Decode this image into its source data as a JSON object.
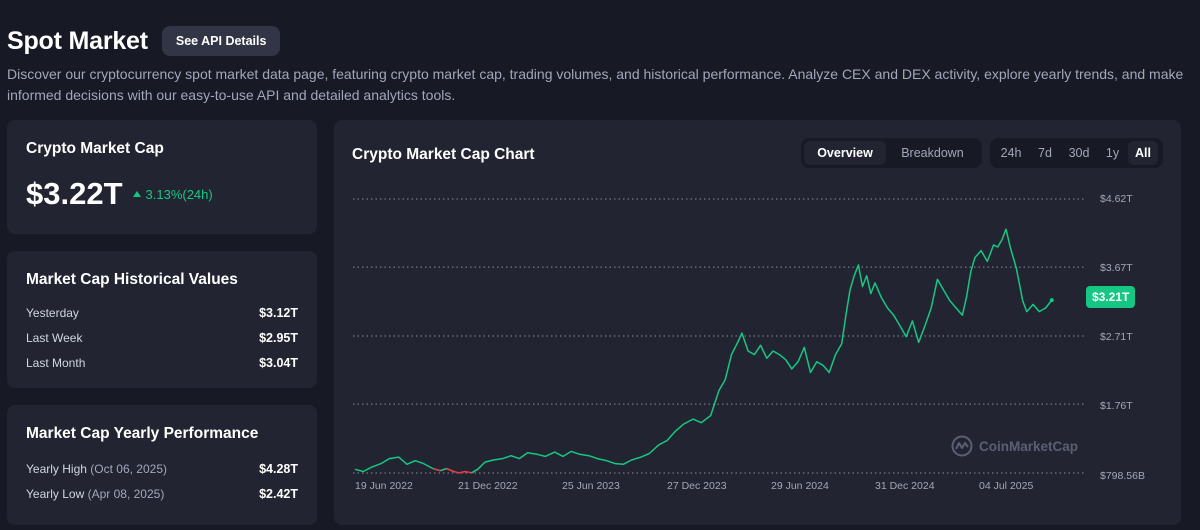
{
  "header": {
    "title": "Spot Market",
    "api_button": "See API Details"
  },
  "description": "Discover our cryptocurrency spot market data page, featuring crypto market cap, trading volumes, and historical performance. Analyze CEX and DEX activity, explore yearly trends, and make informed decisions with our easy-to-use API and detailed analytics tools.",
  "market_cap": {
    "title": "Crypto Market Cap",
    "value": "$3.22T",
    "change": "3.13%(24h)"
  },
  "historical": {
    "title": "Market Cap Historical Values",
    "rows": [
      {
        "label": "Yesterday",
        "value": "$3.12T"
      },
      {
        "label": "Last Week",
        "value": "$2.95T"
      },
      {
        "label": "Last Month",
        "value": "$3.04T"
      }
    ]
  },
  "yearly": {
    "title": "Market Cap Yearly Performance",
    "high": {
      "label": "Yearly High",
      "date": "(Oct 06, 2025)",
      "value": "$4.28T"
    },
    "low": {
      "label": "Yearly Low",
      "date": "(Apr 08, 2025)",
      "value": "$2.42T"
    }
  },
  "chart": {
    "title": "Crypto Market Cap Chart",
    "view_tabs": [
      "Overview",
      "Breakdown"
    ],
    "active_view": "Overview",
    "range_tabs": [
      "24h",
      "7d",
      "30d",
      "1y",
      "All"
    ],
    "active_range": "All",
    "current_price_label": "$3.21T",
    "watermark": "CoinMarketCap",
    "up_color": "#16c784",
    "down_color": "#ea3943"
  },
  "chart_data": {
    "type": "line",
    "title": "Crypto Market Cap Chart",
    "y_tick_labels": [
      "$4.62T",
      "$3.67T",
      "$2.71T",
      "$1.76T",
      "$798.56B"
    ],
    "y_tick_values": [
      4.62,
      3.67,
      2.71,
      1.76,
      0.79856
    ],
    "ylim": [
      0.79856,
      4.62
    ],
    "x_tick_labels": [
      "19 Jun 2022",
      "21 Dec 2022",
      "25 Jun 2023",
      "27 Dec 2023",
      "29 Jun 2024",
      "31 Dec 2024",
      "04 Jul 2025"
    ],
    "grid": true,
    "y_unit": "trillion USD",
    "series": [
      {
        "values": [
          [
            0.0,
            0.85
          ],
          [
            0.08,
            0.82
          ],
          [
            0.16,
            0.88
          ],
          [
            0.25,
            0.93
          ],
          [
            0.33,
            1.0
          ],
          [
            0.42,
            1.02
          ],
          [
            0.5,
            0.92
          ],
          [
            0.58,
            0.97
          ],
          [
            0.66,
            0.93
          ],
          [
            0.75,
            0.86
          ],
          [
            0.82,
            0.83
          ],
          [
            0.88,
            0.86
          ],
          [
            0.95,
            0.82
          ],
          [
            1.0,
            0.8
          ],
          [
            1.06,
            0.82
          ],
          [
            1.12,
            0.8
          ],
          [
            1.18,
            0.85
          ],
          [
            1.25,
            0.95
          ],
          [
            1.33,
            0.98
          ],
          [
            1.42,
            1.0
          ],
          [
            1.5,
            1.04
          ],
          [
            1.58,
            1.0
          ],
          [
            1.66,
            1.08
          ],
          [
            1.75,
            1.06
          ],
          [
            1.83,
            1.03
          ],
          [
            1.92,
            1.09
          ],
          [
            2.0,
            1.03
          ],
          [
            2.08,
            1.1
          ],
          [
            2.16,
            1.06
          ],
          [
            2.25,
            1.04
          ],
          [
            2.33,
            1.0
          ],
          [
            2.42,
            0.97
          ],
          [
            2.5,
            0.93
          ],
          [
            2.58,
            0.92
          ],
          [
            2.66,
            0.98
          ],
          [
            2.75,
            1.02
          ],
          [
            2.83,
            1.07
          ],
          [
            2.92,
            1.19
          ],
          [
            3.0,
            1.25
          ],
          [
            3.08,
            1.38
          ],
          [
            3.16,
            1.48
          ],
          [
            3.25,
            1.55
          ],
          [
            3.33,
            1.5
          ],
          [
            3.42,
            1.6
          ],
          [
            3.5,
            1.95
          ],
          [
            3.56,
            2.1
          ],
          [
            3.62,
            2.45
          ],
          [
            3.68,
            2.62
          ],
          [
            3.72,
            2.75
          ],
          [
            3.78,
            2.5
          ],
          [
            3.84,
            2.45
          ],
          [
            3.9,
            2.58
          ],
          [
            3.96,
            2.4
          ],
          [
            4.02,
            2.5
          ],
          [
            4.08,
            2.45
          ],
          [
            4.14,
            2.38
          ],
          [
            4.2,
            2.25
          ],
          [
            4.26,
            2.35
          ],
          [
            4.32,
            2.55
          ],
          [
            4.38,
            2.2
          ],
          [
            4.44,
            2.35
          ],
          [
            4.5,
            2.3
          ],
          [
            4.56,
            2.2
          ],
          [
            4.62,
            2.45
          ],
          [
            4.68,
            2.6
          ],
          [
            4.72,
            3.0
          ],
          [
            4.76,
            3.35
          ],
          [
            4.8,
            3.55
          ],
          [
            4.84,
            3.7
          ],
          [
            4.88,
            3.4
          ],
          [
            4.92,
            3.55
          ],
          [
            4.96,
            3.3
          ],
          [
            5.0,
            3.45
          ],
          [
            5.06,
            3.25
          ],
          [
            5.12,
            3.1
          ],
          [
            5.18,
            3.0
          ],
          [
            5.24,
            2.85
          ],
          [
            5.3,
            2.7
          ],
          [
            5.36,
            2.92
          ],
          [
            5.42,
            2.62
          ],
          [
            5.48,
            2.85
          ],
          [
            5.54,
            3.1
          ],
          [
            5.6,
            3.5
          ],
          [
            5.66,
            3.35
          ],
          [
            5.72,
            3.2
          ],
          [
            5.78,
            3.1
          ],
          [
            5.84,
            3.0
          ],
          [
            5.88,
            3.25
          ],
          [
            5.92,
            3.6
          ],
          [
            5.96,
            3.8
          ],
          [
            6.02,
            3.9
          ],
          [
            6.08,
            3.75
          ],
          [
            6.14,
            3.98
          ],
          [
            6.18,
            3.95
          ],
          [
            6.22,
            4.05
          ],
          [
            6.26,
            4.2
          ],
          [
            6.3,
            3.95
          ],
          [
            6.36,
            3.65
          ],
          [
            6.42,
            3.2
          ],
          [
            6.46,
            3.05
          ],
          [
            6.52,
            3.15
          ],
          [
            6.58,
            3.05
          ],
          [
            6.64,
            3.1
          ],
          [
            6.7,
            3.21
          ]
        ]
      }
    ],
    "note": "x expressed in x-tick-label intervals from 19 Jun 2022; the red dip segment approximates late 2022 lows"
  }
}
